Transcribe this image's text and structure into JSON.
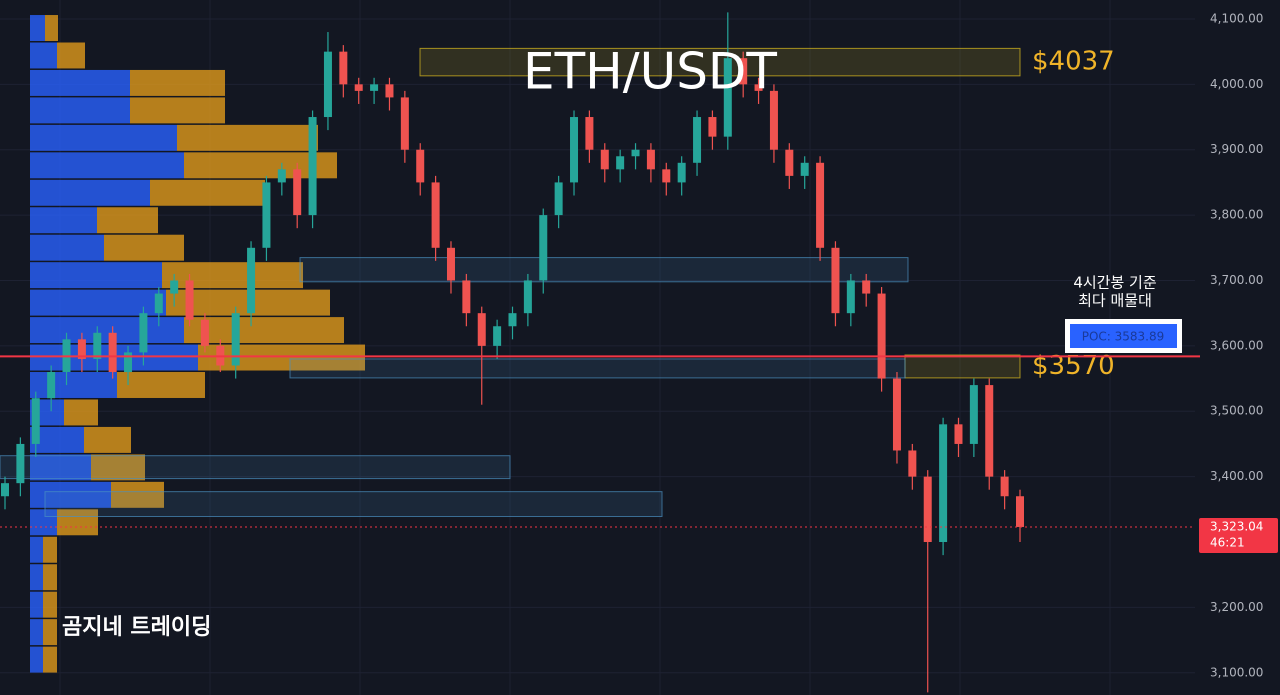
{
  "chart_data": {
    "type": "candlestick",
    "title": "ETH/USDT",
    "watermark": "곰지네 트레이딩",
    "note_lines": [
      "4시간봉 기준",
      "최다 매물대"
    ],
    "ylim": [
      3066,
      4129
    ],
    "yticks": [
      {
        "value": 3100,
        "label": "3,100.00"
      },
      {
        "value": 3200,
        "label": "3,200.00"
      },
      {
        "value": 3400,
        "label": "3,400.00"
      },
      {
        "value": 3500,
        "label": "3,500.00"
      },
      {
        "value": 3600,
        "label": "3,600.00"
      },
      {
        "value": 3700,
        "label": "3,700.00"
      },
      {
        "value": 3800,
        "label": "3,800.00"
      },
      {
        "value": 3900,
        "label": "3,900.00"
      },
      {
        "value": 4000,
        "label": "4,000.00"
      },
      {
        "value": 4100,
        "label": "4,100.00"
      }
    ],
    "grid": true,
    "up_color": "#26a69a",
    "down_color": "#ef5350",
    "open": [
      3370,
      3390,
      3450,
      3520,
      3560,
      3610,
      3580,
      3620,
      3560,
      3590,
      3650,
      3680,
      3700,
      3640,
      3600,
      3570,
      3650,
      3750,
      3850,
      3870,
      3800,
      3950,
      4050,
      4000,
      3990,
      4000,
      3980,
      3900,
      3850,
      3750,
      3700,
      3650,
      3600,
      3630,
      3650,
      3700,
      3800,
      3850,
      3950,
      3900,
      3870,
      3890,
      3900,
      3870,
      3850,
      3880,
      3950,
      3920,
      4040,
      4000,
      3990,
      3900,
      3860,
      3880,
      3750,
      3650,
      3700,
      3680,
      3550,
      3440,
      3400,
      3300,
      3480,
      3450,
      3540,
      3400,
      3370
    ],
    "high": [
      3400,
      3460,
      3530,
      3570,
      3620,
      3620,
      3630,
      3630,
      3600,
      3660,
      3690,
      3710,
      3710,
      3650,
      3610,
      3660,
      3760,
      3860,
      3880,
      3880,
      3960,
      4080,
      4060,
      4010,
      4010,
      4010,
      3990,
      3910,
      3860,
      3760,
      3710,
      3660,
      3640,
      3660,
      3710,
      3810,
      3860,
      3960,
      3960,
      3910,
      3900,
      3910,
      3910,
      3880,
      3890,
      3960,
      3960,
      4110,
      4050,
      4010,
      4000,
      3910,
      3890,
      3890,
      3760,
      3710,
      3710,
      3690,
      3560,
      3450,
      3410,
      3490,
      3490,
      3550,
      3550,
      3410,
      3380
    ],
    "low": [
      3350,
      3370,
      3430,
      3500,
      3540,
      3560,
      3560,
      3550,
      3540,
      3570,
      3630,
      3660,
      3630,
      3590,
      3560,
      3550,
      3630,
      3730,
      3830,
      3780,
      3780,
      3930,
      3980,
      3970,
      3970,
      3960,
      3880,
      3830,
      3730,
      3680,
      3630,
      3510,
      3580,
      3610,
      3630,
      3680,
      3780,
      3830,
      3880,
      3850,
      3850,
      3870,
      3850,
      3830,
      3830,
      3860,
      3900,
      3900,
      3980,
      3970,
      3880,
      3840,
      3840,
      3730,
      3630,
      3630,
      3660,
      3530,
      3420,
      3380,
      3070,
      3280,
      3430,
      3430,
      3380,
      3350,
      3300
    ],
    "close": [
      3390,
      3450,
      3520,
      3560,
      3610,
      3580,
      3620,
      3560,
      3590,
      3650,
      3680,
      3700,
      3640,
      3600,
      3570,
      3650,
      3750,
      3850,
      3870,
      3800,
      3950,
      4050,
      4000,
      3990,
      4000,
      3980,
      3900,
      3850,
      3750,
      3700,
      3650,
      3600,
      3630,
      3650,
      3700,
      3800,
      3850,
      3950,
      3900,
      3870,
      3890,
      3900,
      3870,
      3850,
      3880,
      3950,
      3920,
      4040,
      4000,
      3990,
      3900,
      3860,
      3880,
      3750,
      3650,
      3700,
      3680,
      3550,
      3440,
      3400,
      3300,
      3480,
      3450,
      3540,
      3400,
      3370,
      3323
    ],
    "profile": {
      "bins": [
        4106,
        4064,
        4022,
        3980,
        3938,
        3896,
        3854,
        3812,
        3770,
        3728,
        3686,
        3644,
        3602,
        3560,
        3518,
        3476,
        3434,
        3392,
        3350,
        3308,
        3266,
        3224,
        3182,
        3140,
        3098
      ],
      "buy": [
        15,
        27,
        100,
        100,
        147,
        154,
        120,
        67,
        74,
        132,
        136,
        154,
        168,
        87,
        34,
        54,
        61,
        81,
        27,
        13,
        13,
        13,
        13,
        13
      ],
      "sell": [
        13,
        28,
        95,
        95,
        141,
        153,
        115,
        61,
        80,
        141,
        164,
        160,
        167,
        88,
        34,
        47,
        54,
        53,
        41,
        14,
        14,
        14,
        14,
        14
      ],
      "buy_color": "#2962ff",
      "sell_color": "#e09a1c"
    },
    "zones": [
      {
        "top": 4055,
        "bottom": 4013,
        "color": "#e0c020",
        "label": "$4037"
      },
      {
        "top": 3735,
        "bottom": 3698,
        "color": "#4a90c0"
      },
      {
        "top": 3586,
        "bottom": 3551,
        "color": "#e0c020",
        "label": "$3570"
      },
      {
        "top": 3580,
        "bottom": 3551,
        "color": "#4a90c0"
      },
      {
        "top": 3432,
        "bottom": 3397,
        "color": "#4a90c0"
      },
      {
        "top": 3377,
        "bottom": 3339,
        "color": "#4a90c0"
      }
    ],
    "poc": {
      "value": 3583.89,
      "label": "POC: 3583.89",
      "color": "#f23645"
    },
    "last_price": {
      "value": 3323.04,
      "label": "3,323.04",
      "countdown": "46:21",
      "color": "#f23645"
    }
  }
}
